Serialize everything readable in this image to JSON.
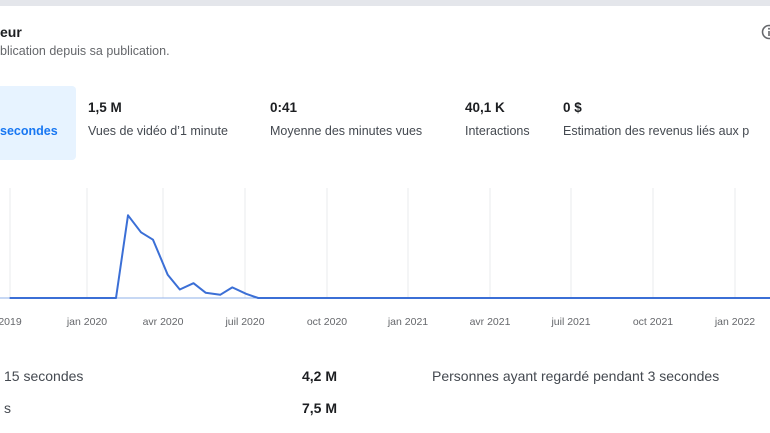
{
  "header": {
    "title": "eur",
    "subtitle": "blication depuis sa publication."
  },
  "metrics": [
    {
      "value": "",
      "label": "secondes",
      "active": true
    },
    {
      "value": "1,5 M",
      "label": "Vues de vidéo d’1 minute"
    },
    {
      "value": "0:41",
      "label": "Moyenne des minutes vues"
    },
    {
      "value": "40,1 K",
      "label": "Interactions"
    },
    {
      "value": "0 $",
      "label": "Estimation des revenus liés aux p"
    }
  ],
  "chart_data": {
    "type": "line",
    "xlabel": "",
    "ylabel": "",
    "grid": true,
    "color": "#3b6fd6",
    "tick_labels": [
      "2019",
      "janv. 2020",
      "avr 2020",
      "juil 2020",
      "oct 2020",
      "janv 2021",
      "avr 2021",
      "juil 2021",
      "oct 2021",
      "janv 2022"
    ],
    "tick_labels_display": [
      "2019",
      "jan 2020",
      "avr 2020",
      "juil 2020",
      "oct 2020",
      "jan 2021",
      "avr 2021",
      "juil 2021",
      "oct 2021",
      "jan 2022"
    ],
    "x": [
      "2019-10",
      "2020-01",
      "2020-02",
      "2020-02-15",
      "2020-03",
      "2020-03-15",
      "2020-04",
      "2020-04-15",
      "2020-05",
      "2020-05-15",
      "2020-06",
      "2020-06-15",
      "2020-07",
      "2020-07-15",
      "2020-08",
      "2020-10",
      "2021-01",
      "2021-04",
      "2021-07",
      "2021-10",
      "2022-01",
      "2022-03"
    ],
    "series": [
      {
        "values": [
          0,
          0,
          0,
          78,
          62,
          55,
          22,
          8,
          14,
          5,
          3,
          10,
          4,
          0,
          0,
          0,
          0,
          0,
          0,
          0,
          0,
          0
        ]
      }
    ],
    "ylim": [
      0,
      100
    ]
  },
  "stats": [
    {
      "label": "15 secondes",
      "value": "4,2 M",
      "right_label": "Personnes ayant regardé pendant 3 secondes"
    },
    {
      "label": "s",
      "value": "7,5 M"
    }
  ],
  "icons": {
    "corner": "info-icon"
  }
}
